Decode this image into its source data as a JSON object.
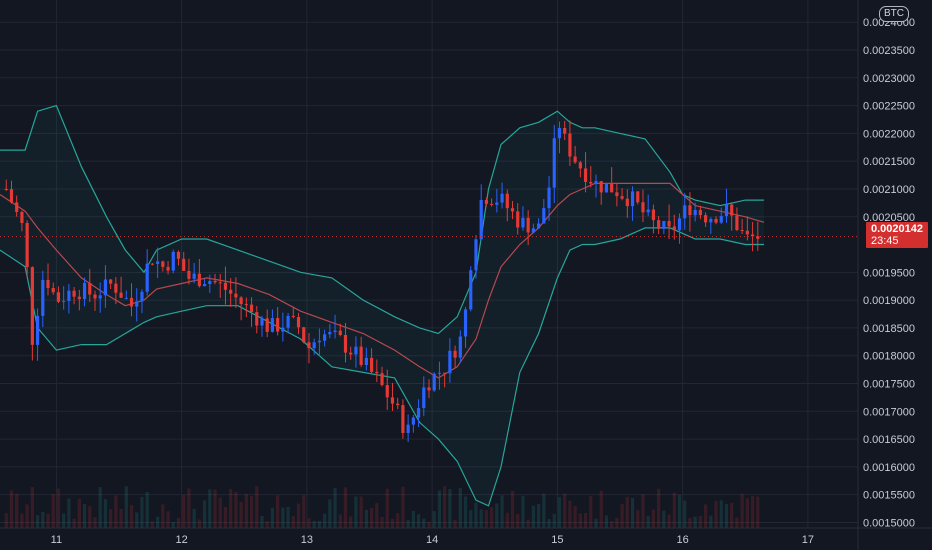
{
  "chart_data": {
    "type": "candlestick",
    "currency_badge": "BTC",
    "last_price": "0.0020142",
    "countdown": "23:45",
    "x_ticks": [
      "11",
      "12",
      "13",
      "14",
      "15",
      "16",
      "17"
    ],
    "y_ticks": [
      "0.0015000",
      "0.0015500",
      "0.0016000",
      "0.0016500",
      "0.0017000",
      "0.0017500",
      "0.0018000",
      "0.0018500",
      "0.0019000",
      "0.0019500",
      "0.0020500",
      "0.0021000",
      "0.0021500",
      "0.0022000",
      "0.0022500",
      "0.0023000",
      "0.0023500",
      "0.0024000"
    ],
    "ylim": [
      0.00149,
      0.00244
    ],
    "xlim": [
      10.55,
      17.4
    ],
    "grid": true,
    "indicators": [
      "Bollinger Bands",
      "Volume"
    ],
    "close_series": {
      "x": [
        10.6,
        10.75,
        10.8,
        10.9,
        11.0,
        11.15,
        11.3,
        11.45,
        11.6,
        11.7,
        11.75,
        11.85,
        11.95,
        12.05,
        12.2,
        12.35,
        12.45,
        12.55,
        12.7,
        12.85,
        12.95,
        13.0,
        13.1,
        13.25,
        13.4,
        13.55,
        13.7,
        13.8,
        13.85,
        13.95,
        14.1,
        14.25,
        14.3,
        14.4,
        14.55,
        14.7,
        14.85,
        14.95,
        15.0,
        15.05,
        15.15,
        15.3,
        15.45,
        15.6,
        15.75,
        15.9,
        16.05,
        16.2,
        16.35,
        16.45,
        16.5,
        16.6
      ],
      "y": [
        0.0021,
        0.00202,
        0.00182,
        0.00195,
        0.0019,
        0.00192,
        0.00191,
        0.00193,
        0.00189,
        0.00194,
        0.00198,
        0.00196,
        0.00198,
        0.00194,
        0.00194,
        0.00192,
        0.0019,
        0.00188,
        0.00185,
        0.00186,
        0.00185,
        0.00181,
        0.00184,
        0.00183,
        0.0018,
        0.00176,
        0.00171,
        0.00166,
        0.00169,
        0.00175,
        0.00178,
        0.00184,
        0.00196,
        0.00209,
        0.00208,
        0.00204,
        0.00203,
        0.00212,
        0.00223,
        0.00219,
        0.00215,
        0.00211,
        0.0021,
        0.00208,
        0.00204,
        0.00202,
        0.00207,
        0.00205,
        0.00206,
        0.00203,
        0.00201,
        0.002014
      ]
    },
    "bollinger": {
      "x": [
        10.55,
        10.75,
        10.85,
        11.0,
        11.2,
        11.4,
        11.55,
        11.7,
        11.8,
        12.0,
        12.2,
        12.45,
        12.7,
        12.95,
        13.2,
        13.45,
        13.7,
        13.9,
        14.05,
        14.2,
        14.35,
        14.45,
        14.55,
        14.7,
        14.85,
        15.0,
        15.1,
        15.2,
        15.3,
        15.5,
        15.7,
        15.9,
        16.0,
        16.1,
        16.3,
        16.5,
        16.65
      ],
      "upper": [
        0.00217,
        0.00217,
        0.00224,
        0.00225,
        0.00214,
        0.00205,
        0.00199,
        0.00195,
        0.00199,
        0.00201,
        0.00201,
        0.00199,
        0.00197,
        0.00195,
        0.00194,
        0.0019,
        0.00187,
        0.00185,
        0.00184,
        0.00187,
        0.00195,
        0.0021,
        0.00218,
        0.00221,
        0.00222,
        0.00224,
        0.00222,
        0.00221,
        0.00221,
        0.0022,
        0.00219,
        0.00213,
        0.00209,
        0.00208,
        0.00207,
        0.00208,
        0.00208
      ],
      "middle": [
        0.00209,
        0.00206,
        0.00203,
        0.00199,
        0.00194,
        0.00191,
        0.00189,
        0.0019,
        0.00192,
        0.00193,
        0.00194,
        0.00193,
        0.00191,
        0.00188,
        0.00186,
        0.00184,
        0.00181,
        0.00178,
        0.00176,
        0.00178,
        0.00183,
        0.0019,
        0.00196,
        0.002,
        0.00203,
        0.00207,
        0.00209,
        0.0021,
        0.00211,
        0.00211,
        0.00211,
        0.00211,
        0.00209,
        0.00207,
        0.00206,
        0.00205,
        0.00204
      ],
      "lower": [
        0.00199,
        0.00196,
        0.00185,
        0.00181,
        0.00182,
        0.00182,
        0.00184,
        0.00186,
        0.00187,
        0.00188,
        0.00189,
        0.00189,
        0.00186,
        0.00183,
        0.00178,
        0.00177,
        0.00176,
        0.00168,
        0.00165,
        0.00161,
        0.00154,
        0.00153,
        0.0016,
        0.00177,
        0.00184,
        0.00194,
        0.00199,
        0.002,
        0.002,
        0.00201,
        0.00203,
        0.00203,
        0.00202,
        0.00201,
        0.00201,
        0.002,
        0.002
      ]
    }
  },
  "colors": {
    "background": "#131722",
    "grid": "#232734",
    "up": "#2962ff",
    "down": "#e53935",
    "band": "#26a69a",
    "band_fill": "#26a69a",
    "basis": "#b7484f",
    "price_line": "#d32f2f",
    "axis_text": "#c8ccd6"
  }
}
